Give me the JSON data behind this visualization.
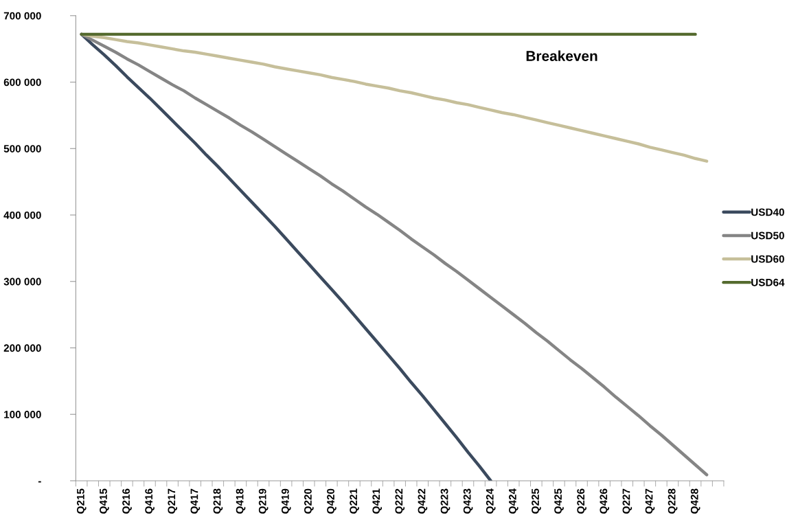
{
  "chart_data": {
    "type": "line",
    "categories": [
      "Q215",
      null,
      "Q415",
      null,
      "Q216",
      null,
      "Q416",
      null,
      "Q217",
      null,
      "Q417",
      null,
      "Q218",
      null,
      "Q418",
      null,
      "Q219",
      null,
      "Q419",
      null,
      "Q220",
      null,
      "Q420",
      null,
      "Q221",
      null,
      "Q421",
      null,
      "Q222",
      null,
      "Q422",
      null,
      "Q223",
      null,
      "Q423",
      null,
      "Q224",
      null,
      "Q424",
      null,
      "Q225",
      null,
      "Q425",
      null,
      "Q226",
      null,
      "Q426",
      null,
      "Q227",
      null,
      "Q427",
      null,
      "Q228",
      null,
      "Q428",
      null,
      null
    ],
    "series": [
      {
        "name": "USD40",
        "color": "#3b4a5e",
        "values": [
          672000,
          656000,
          641000,
          625000,
          608000,
          592000,
          576000,
          559000,
          542000,
          525000,
          508000,
          490000,
          473000,
          455000,
          437000,
          419000,
          401000,
          383000,
          364000,
          345000,
          326000,
          307000,
          288000,
          269000,
          249000,
          229000,
          209000,
          189000,
          169000,
          148000,
          128000,
          107000,
          86000,
          65000,
          43000,
          22000,
          0,
          null,
          null,
          null,
          null,
          null,
          null,
          null,
          null,
          null,
          null,
          null,
          null,
          null,
          null,
          null,
          null,
          null,
          null,
          null,
          null
        ]
      },
      {
        "name": "USD50",
        "color": "#858585",
        "values": [
          672000,
          663000,
          654000,
          645000,
          635000,
          626000,
          616000,
          606000,
          596000,
          587000,
          576000,
          566000,
          556000,
          546000,
          535000,
          525000,
          514000,
          503000,
          492000,
          481000,
          470000,
          459000,
          447000,
          436000,
          424000,
          412000,
          401000,
          389000,
          377000,
          364000,
          352000,
          340000,
          327000,
          315000,
          302000,
          289000,
          276000,
          263000,
          250000,
          237000,
          223000,
          210000,
          196000,
          182000,
          169000,
          155000,
          141000,
          126000,
          112000,
          98000,
          83000,
          69000,
          54000,
          39000,
          24000,
          9000,
          null
        ]
      },
      {
        "name": "USD60",
        "color": "#c6bf9a",
        "values": [
          672000,
          669000,
          667000,
          664000,
          661000,
          659000,
          656000,
          653000,
          650000,
          647000,
          645000,
          642000,
          639000,
          636000,
          633000,
          630000,
          627000,
          623000,
          620000,
          617000,
          614000,
          611000,
          607000,
          604000,
          601000,
          597000,
          594000,
          591000,
          587000,
          584000,
          580000,
          576000,
          573000,
          569000,
          566000,
          562000,
          558000,
          554000,
          551000,
          547000,
          543000,
          539000,
          535000,
          531000,
          527000,
          523000,
          519000,
          515000,
          511000,
          507000,
          502000,
          498000,
          494000,
          490000,
          485000,
          481000,
          null
        ]
      },
      {
        "name": "USD64",
        "color": "#556b2f",
        "values": [
          672000,
          672000,
          672000,
          672000,
          672000,
          672000,
          672000,
          672000,
          672000,
          672000,
          672000,
          672000,
          672000,
          672000,
          672000,
          672000,
          672000,
          672000,
          672000,
          672000,
          672000,
          672000,
          672000,
          672000,
          672000,
          672000,
          672000,
          672000,
          672000,
          672000,
          672000,
          672000,
          672000,
          672000,
          672000,
          672000,
          672000,
          672000,
          672000,
          672000,
          672000,
          672000,
          672000,
          672000,
          672000,
          672000,
          672000,
          672000,
          672000,
          672000,
          672000,
          672000,
          672000,
          672000,
          672000,
          null,
          null
        ]
      }
    ],
    "annotations": [
      "Breakeven"
    ],
    "ylim": [
      0,
      700000
    ],
    "yticks": [
      {
        "value": 0,
        "label": "-"
      },
      {
        "value": 100000,
        "label": "100 000"
      },
      {
        "value": 200000,
        "label": "200 000"
      },
      {
        "value": 300000,
        "label": "300 000"
      },
      {
        "value": 400000,
        "label": "400 000"
      },
      {
        "value": 500000,
        "label": "500 000"
      },
      {
        "value": 600000,
        "label": "600 000"
      },
      {
        "value": 700000,
        "label": "700 000"
      }
    ],
    "legend": "right",
    "grid": false,
    "marker": "none",
    "line_style": "solid"
  }
}
